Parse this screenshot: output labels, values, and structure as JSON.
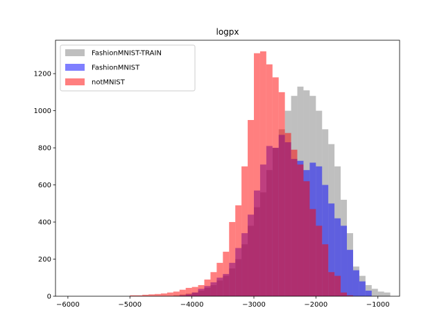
{
  "chart_data": {
    "type": "bar",
    "title": "logpx",
    "xlabel": "",
    "ylabel": "",
    "xlim": [
      -6200,
      -650
    ],
    "ylim": [
      0,
      1380
    ],
    "bin_width": 100,
    "xticks": [
      -6000,
      -5000,
      -4000,
      -3000,
      -2000,
      -1000
    ],
    "xtick_labels": [
      "−6000",
      "−5000",
      "−4000",
      "−3000",
      "−2000",
      "−1000"
    ],
    "yticks": [
      0,
      200,
      400,
      600,
      800,
      1000,
      1200
    ],
    "ytick_labels": [
      "0",
      "200",
      "400",
      "600",
      "800",
      "1000",
      "1200"
    ],
    "legend_position": "upper-left",
    "series": [
      {
        "name": "FashionMNIST-TRAIN",
        "color": "#808080",
        "bins_start": [
          -4300,
          -4200,
          -4100,
          -4000,
          -3900,
          -3800,
          -3700,
          -3600,
          -3500,
          -3400,
          -3300,
          -3200,
          -3100,
          -3000,
          -2900,
          -2800,
          -2700,
          -2600,
          -2500,
          -2400,
          -2300,
          -2200,
          -2100,
          -2000,
          -1900,
          -1800,
          -1700,
          -1600,
          -1500,
          -1400,
          -1300,
          -1200,
          -1100,
          -1000,
          -900
        ],
        "values": [
          5,
          10,
          15,
          20,
          30,
          45,
          60,
          85,
          110,
          150,
          200,
          280,
          380,
          480,
          560,
          680,
          800,
          900,
          1000,
          1080,
          1130,
          1110,
          1080,
          1000,
          900,
          820,
          700,
          520,
          340,
          160,
          110,
          60,
          40,
          25,
          20
        ]
      },
      {
        "name": "FashionMNIST",
        "color": "#0000ff",
        "bins_start": [
          -4200,
          -4100,
          -4000,
          -3900,
          -3800,
          -3700,
          -3600,
          -3500,
          -3400,
          -3300,
          -3200,
          -3100,
          -3000,
          -2900,
          -2800,
          -2700,
          -2600,
          -2500,
          -2400,
          -2300,
          -2200,
          -2100,
          -2000,
          -1900,
          -1800,
          -1700,
          -1600,
          -1500,
          -1400,
          -1300,
          -1200
        ],
        "values": [
          5,
          10,
          20,
          40,
          55,
          75,
          100,
          120,
          180,
          260,
          340,
          440,
          570,
          710,
          810,
          800,
          870,
          830,
          740,
          730,
          680,
          720,
          700,
          600,
          500,
          420,
          380,
          250,
          140,
          80,
          30
        ]
      },
      {
        "name": "notMNIST",
        "color": "#ff0000",
        "bins_start": [
          -5000,
          -4900,
          -4800,
          -4700,
          -4600,
          -4500,
          -4400,
          -4300,
          -4200,
          -4100,
          -4000,
          -3900,
          -3800,
          -3700,
          -3600,
          -3500,
          -3400,
          -3300,
          -3200,
          -3100,
          -3000,
          -2900,
          -2800,
          -2700,
          -2600,
          -2500,
          -2400,
          -2300,
          -2200,
          -2100,
          -2000,
          -1900,
          -1800,
          -1700,
          -1600,
          -1500
        ],
        "values": [
          5,
          5,
          8,
          10,
          12,
          15,
          20,
          25,
          35,
          45,
          50,
          60,
          90,
          130,
          180,
          240,
          400,
          490,
          700,
          950,
          1310,
          1320,
          1250,
          1180,
          1100,
          880,
          790,
          710,
          620,
          470,
          380,
          280,
          130,
          110,
          20,
          5
        ]
      }
    ]
  }
}
